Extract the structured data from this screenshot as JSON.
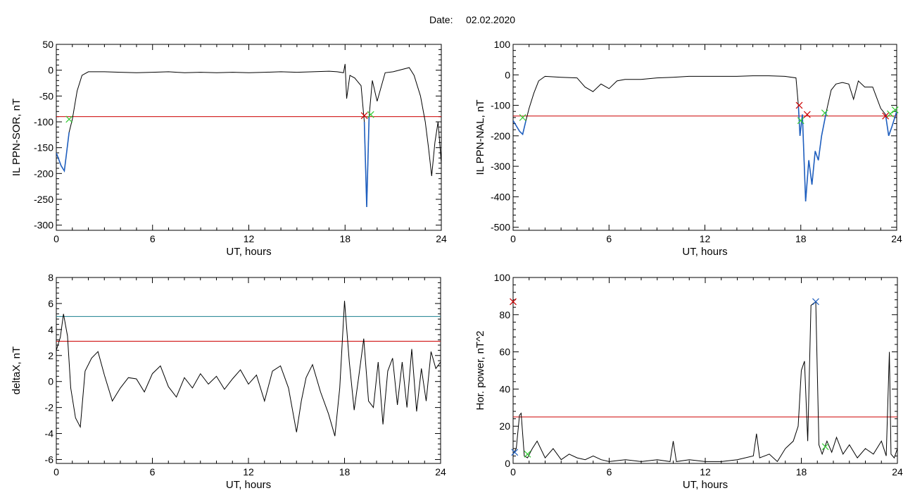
{
  "figure": {
    "date_label": "Date:",
    "date_value": "02.02.2020"
  },
  "colors": {
    "trace": "#000000",
    "highlight": "#1f5fbf",
    "threshold_red": "#cc0000",
    "threshold_teal": "#1a7f8f",
    "marker_red": "#cc0000",
    "marker_green": "#33cc33",
    "marker_blue": "#1f5fbf"
  },
  "chart_data": [
    {
      "type": "line",
      "title": "",
      "xlabel": "UT, hours",
      "ylabel": "IL PPN-SOR, nT",
      "xlim": [
        0,
        24
      ],
      "ylim": [
        -310,
        50
      ],
      "xticks": [
        0,
        6,
        12,
        18,
        24
      ],
      "yticks": [
        50,
        0,
        -50,
        -100,
        -150,
        -200,
        -250,
        -300
      ],
      "grid": false,
      "x": [
        0,
        0.3,
        0.5,
        0.6,
        0.8,
        1.0,
        1.3,
        1.6,
        2.0,
        3,
        4,
        5,
        6,
        7,
        8,
        9,
        10,
        11,
        12,
        13,
        14,
        15,
        16,
        17,
        17.5,
        17.9,
        18.0,
        18.1,
        18.3,
        18.6,
        19.0,
        19.2,
        19.35,
        19.5,
        19.7,
        20.0,
        20.5,
        21,
        22,
        22.3,
        22.7,
        23.0,
        23.2,
        23.4,
        23.6,
        23.8,
        24
      ],
      "series": [
        {
          "values": [
            -160,
            -185,
            -195,
            -170,
            -120,
            -95,
            -40,
            -10,
            -3,
            -3,
            -4,
            -5,
            -4,
            -3,
            -5,
            -4,
            -5,
            -4,
            -5,
            -4,
            -3,
            -4,
            -3,
            -2,
            -3,
            -5,
            12,
            -55,
            -10,
            -15,
            -30,
            -100,
            -265,
            -90,
            -20,
            -60,
            -5,
            -3,
            5,
            -10,
            -50,
            -100,
            -150,
            -205,
            -140,
            -100,
            -180
          ]
        }
      ],
      "threshold_lines": [
        -90
      ],
      "highlighted_segments": [
        [
          0,
          0.9
        ],
        [
          19.15,
          19.55
        ]
      ],
      "markers": [
        {
          "x": 0.8,
          "y": -95,
          "color": "green"
        },
        {
          "x": 19.2,
          "y": -88,
          "color": "red"
        },
        {
          "x": 19.6,
          "y": -86,
          "color": "green"
        }
      ]
    },
    {
      "type": "line",
      "title": "",
      "xlabel": "UT, hours",
      "ylabel": "IL PPN-NAL, nT",
      "xlim": [
        0,
        24
      ],
      "ylim": [
        -510,
        100
      ],
      "xticks": [
        0,
        6,
        12,
        18,
        24
      ],
      "yticks": [
        100,
        0,
        -100,
        -200,
        -300,
        -400,
        -500
      ],
      "grid": false,
      "x": [
        0,
        0.4,
        0.6,
        0.8,
        1.0,
        1.3,
        1.6,
        2.0,
        3,
        4,
        4.5,
        5,
        5.5,
        6,
        6.5,
        7,
        8,
        9,
        10,
        11,
        12,
        13,
        14,
        15,
        16,
        17,
        17.7,
        17.85,
        17.95,
        18.1,
        18.3,
        18.5,
        18.7,
        18.9,
        19.1,
        19.3,
        19.6,
        19.9,
        20.2,
        20.6,
        21,
        21.3,
        21.6,
        22,
        22.5,
        23,
        23.3,
        23.5,
        23.7,
        24
      ],
      "series": [
        {
          "values": [
            -150,
            -185,
            -195,
            -150,
            -110,
            -60,
            -20,
            -5,
            -8,
            -10,
            -40,
            -55,
            -30,
            -45,
            -20,
            -15,
            -15,
            -10,
            -8,
            -5,
            -5,
            -5,
            -5,
            -3,
            -3,
            -5,
            -10,
            -100,
            -200,
            -130,
            -415,
            -280,
            -360,
            -250,
            -280,
            -200,
            -120,
            -50,
            -30,
            -25,
            -30,
            -80,
            -20,
            -40,
            -40,
            -110,
            -130,
            -200,
            -170,
            -120
          ]
        }
      ],
      "threshold_lines": [
        -135
      ],
      "highlighted_segments": [
        [
          0,
          0.8
        ],
        [
          17.8,
          19.6
        ],
        [
          23.2,
          24
        ]
      ],
      "markers": [
        {
          "x": 0.6,
          "y": -140,
          "color": "green"
        },
        {
          "x": 17.9,
          "y": -100,
          "color": "red"
        },
        {
          "x": 18.0,
          "y": -150,
          "color": "green"
        },
        {
          "x": 18.4,
          "y": -130,
          "color": "red"
        },
        {
          "x": 19.5,
          "y": -125,
          "color": "green"
        },
        {
          "x": 23.3,
          "y": -135,
          "color": "red"
        },
        {
          "x": 23.6,
          "y": -128,
          "color": "green"
        },
        {
          "x": 23.9,
          "y": -115,
          "color": "green"
        }
      ]
    },
    {
      "type": "line",
      "title": "",
      "xlabel": "UT, hours",
      "ylabel": "deltaX, nT",
      "xlim": [
        0,
        24
      ],
      "ylim": [
        -6.3,
        8
      ],
      "xticks": [
        0,
        6,
        12,
        18,
        24
      ],
      "yticks": [
        8,
        6,
        4,
        2,
        0,
        -2,
        -4,
        -6
      ],
      "grid": false,
      "x": [
        0,
        0.25,
        0.45,
        0.7,
        0.9,
        1.2,
        1.5,
        1.8,
        2.2,
        2.6,
        3.0,
        3.5,
        4.0,
        4.5,
        5.0,
        5.5,
        6.0,
        6.5,
        7.0,
        7.5,
        8.0,
        8.5,
        9.0,
        9.5,
        10.0,
        10.5,
        11.0,
        11.5,
        12.0,
        12.5,
        13.0,
        13.5,
        14.0,
        14.5,
        15.0,
        15.3,
        15.6,
        16.0,
        16.5,
        17.0,
        17.4,
        17.7,
        18.0,
        18.3,
        18.6,
        18.9,
        19.2,
        19.5,
        19.8,
        20.1,
        20.4,
        20.7,
        21.0,
        21.3,
        21.6,
        21.9,
        22.2,
        22.5,
        22.8,
        23.1,
        23.4,
        23.7,
        24
      ],
      "series": [
        {
          "values": [
            2.4,
            3.4,
            5.2,
            3.5,
            -0.5,
            -2.8,
            -3.5,
            0.8,
            1.8,
            2.3,
            0.5,
            -1.5,
            -0.5,
            0.3,
            0.2,
            -0.8,
            0.6,
            1.2,
            -0.4,
            -1.2,
            0.3,
            -0.5,
            0.6,
            -0.2,
            0.4,
            -0.6,
            0.2,
            0.9,
            -0.2,
            0.5,
            -1.5,
            0.8,
            1.2,
            -0.5,
            -3.9,
            -1.5,
            0.3,
            1.3,
            -0.8,
            -2.5,
            -4.2,
            -0.5,
            6.2,
            1.5,
            -2.2,
            0.5,
            3.3,
            -1.5,
            -2.0,
            1.5,
            -3.3,
            0.8,
            1.8,
            -1.8,
            1.5,
            -2.0,
            2.5,
            -2.3,
            1.0,
            -1.5,
            2.3,
            1.0,
            1.5
          ]
        }
      ],
      "threshold_lines": [
        5.0,
        3.1
      ],
      "threshold_colors": [
        "teal",
        "red"
      ]
    },
    {
      "type": "line",
      "title": "",
      "xlabel": "UT, hours",
      "ylabel": "Hor. power, nT^2",
      "xlim": [
        0,
        24
      ],
      "ylim": [
        0,
        100
      ],
      "xticks": [
        0,
        6,
        12,
        18,
        24
      ],
      "yticks": [
        100,
        80,
        60,
        40,
        20,
        0
      ],
      "grid": false,
      "x": [
        0,
        0.2,
        0.4,
        0.5,
        0.7,
        0.9,
        1.2,
        1.5,
        2.0,
        2.5,
        3.0,
        3.5,
        4.0,
        4.5,
        5.0,
        5.5,
        6.0,
        7.0,
        8.0,
        9.0,
        9.8,
        10.0,
        10.2,
        11.0,
        12.0,
        13.0,
        14.0,
        15.0,
        15.2,
        15.4,
        16.0,
        16.5,
        17.0,
        17.5,
        17.8,
        18.0,
        18.2,
        18.4,
        18.6,
        18.9,
        19.1,
        19.3,
        19.6,
        19.9,
        20.2,
        20.6,
        21.0,
        21.5,
        22.0,
        22.5,
        23.0,
        23.3,
        23.5,
        23.6,
        23.8,
        24
      ],
      "series": [
        {
          "values": [
            5,
            8,
            26,
            27,
            4,
            3,
            8,
            12,
            3,
            8,
            2,
            5,
            3,
            2,
            4,
            2,
            1,
            2,
            1,
            2,
            1,
            12,
            1,
            2,
            1,
            1,
            2,
            4,
            16,
            3,
            5,
            1,
            8,
            12,
            20,
            50,
            55,
            12,
            85,
            87,
            10,
            5,
            12,
            6,
            14,
            5,
            10,
            3,
            8,
            5,
            12,
            4,
            60,
            5,
            3,
            8
          ]
        }
      ],
      "threshold_lines": [
        25
      ],
      "markers": [
        {
          "x": 0.0,
          "y": 87,
          "color": "red"
        },
        {
          "x": 0.1,
          "y": 6,
          "color": "blue"
        },
        {
          "x": 0.9,
          "y": 5,
          "color": "green"
        },
        {
          "x": 18.9,
          "y": 87,
          "color": "blue"
        },
        {
          "x": 19.5,
          "y": 9,
          "color": "green"
        }
      ]
    }
  ]
}
